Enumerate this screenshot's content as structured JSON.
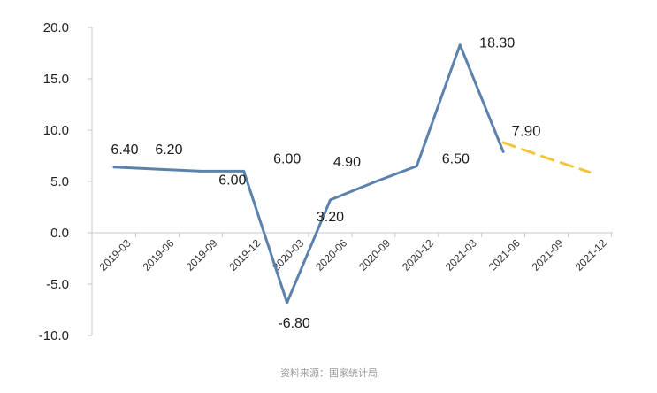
{
  "chart_data": {
    "type": "line",
    "title": "",
    "xlabel": "",
    "ylabel": "",
    "ylim": [
      -10,
      20
    ],
    "yticks": [
      "20.0",
      "15.0",
      "10.0",
      "5.0",
      "0.0",
      "-5.0",
      "-10.0"
    ],
    "categories": [
      "2019-03",
      "2019-06",
      "2019-09",
      "2019-12",
      "2020-03",
      "2020-06",
      "2020-09",
      "2020-12",
      "2021-03",
      "2021-06",
      "2021-09",
      "2021-12"
    ],
    "series": [
      {
        "style": "solid",
        "color": "#5b82ac",
        "x": [
          "2019-03",
          "2019-06",
          "2019-09",
          "2019-12",
          "2020-03",
          "2020-06",
          "2020-09",
          "2020-12",
          "2021-03",
          "2021-06"
        ],
        "values": [
          6.4,
          6.2,
          6.0,
          6.0,
          -6.8,
          3.2,
          4.9,
          6.5,
          18.3,
          7.9
        ],
        "labels": [
          "6.40",
          "6.20",
          "6.00",
          "6.00",
          "-6.80",
          "3.20",
          "4.90",
          "6.50",
          "18.30",
          "7.90"
        ]
      },
      {
        "style": "dashed",
        "color": "#f2c53d",
        "x": [
          "2021-06",
          "2021-09",
          "2021-12"
        ],
        "values": [
          8.8,
          7.3,
          5.9
        ],
        "labels": []
      }
    ],
    "grid": false,
    "legend": "none"
  },
  "source_note": "资料来源：国家统计局",
  "colors": {
    "axis": "#c8c8c8",
    "text": "#1a1a1a"
  }
}
